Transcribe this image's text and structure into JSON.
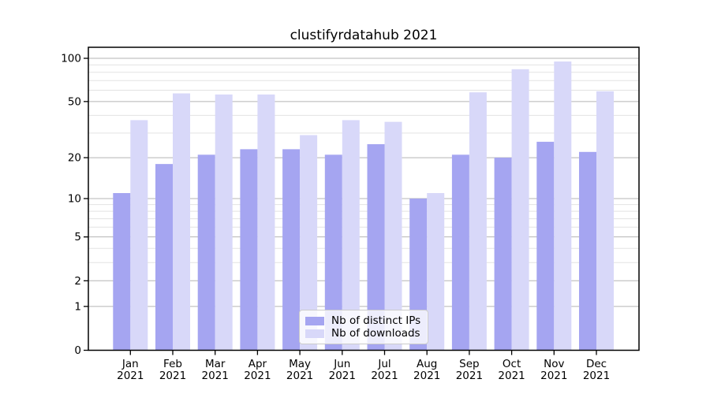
{
  "page": {
    "background": "#ffffff"
  },
  "chart_data": {
    "type": "bar",
    "title": "clustifyrdatahub 2021",
    "x_year": "2021",
    "categories": [
      "Jan",
      "Feb",
      "Mar",
      "Apr",
      "May",
      "Jun",
      "Jul",
      "Aug",
      "Sep",
      "Oct",
      "Nov",
      "Dec"
    ],
    "series": [
      {
        "name": "Nb of distinct IPs",
        "key": "ips",
        "color": "#a5a5f1",
        "values": [
          11,
          18,
          21,
          23,
          23,
          21,
          25,
          10,
          21,
          20,
          26,
          22
        ]
      },
      {
        "name": "Nb of downloads",
        "key": "downloads",
        "color": "#d8d8f9",
        "values": [
          37,
          57,
          56,
          56,
          29,
          37,
          36,
          11,
          58,
          84,
          95,
          59
        ]
      }
    ],
    "y_scale": "log10(value+1)",
    "y_major_ticks": [
      0,
      1,
      2,
      5,
      10,
      20,
      50,
      100
    ],
    "y_minor_gridlines": [
      3,
      4,
      6,
      7,
      8,
      9,
      30,
      40,
      60,
      70,
      80,
      90
    ],
    "ylim": [
      0,
      117
    ],
    "xlabel": "",
    "ylabel": "",
    "grid": "horizontal",
    "legend_position": "lower center",
    "colors": {
      "axis": "#000000",
      "tick_text": "#000000",
      "major_grid": "#b5b5b5",
      "minor_grid": "#e3e3e3"
    }
  }
}
